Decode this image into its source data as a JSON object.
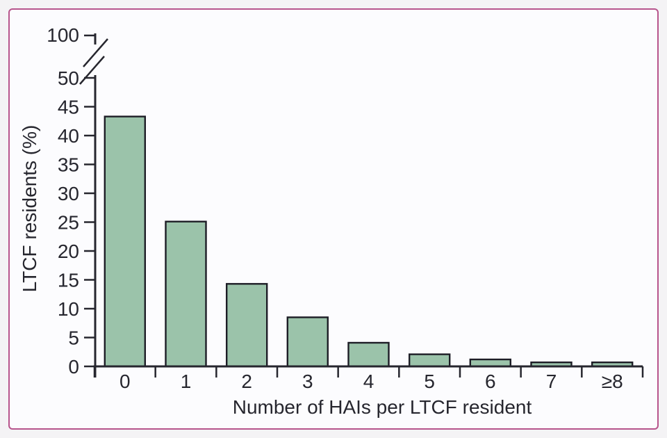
{
  "chart_data": {
    "type": "bar",
    "categories": [
      "0",
      "1",
      "2",
      "3",
      "4",
      "5",
      "6",
      "7",
      "≥8"
    ],
    "values": [
      43.3,
      25.1,
      14.3,
      8.5,
      4.1,
      2.1,
      1.2,
      0.7,
      0.7
    ],
    "title": "",
    "xlabel": "Number of HAIs per LTCF resident",
    "ylabel": "LTCF residents (%)",
    "yticks": [
      0,
      5,
      10,
      15,
      20,
      25,
      30,
      35,
      40,
      45,
      50
    ],
    "ytick_above_break": "100",
    "axis_break": true,
    "ylim": [
      0,
      50
    ],
    "grid": false,
    "legend": false,
    "bar_fill": "#9bc3aa",
    "bar_stroke": "#1d1d26",
    "axis_color": "#26262e",
    "frame_border_color": "#b7548c",
    "background": "#fcfcfe"
  }
}
